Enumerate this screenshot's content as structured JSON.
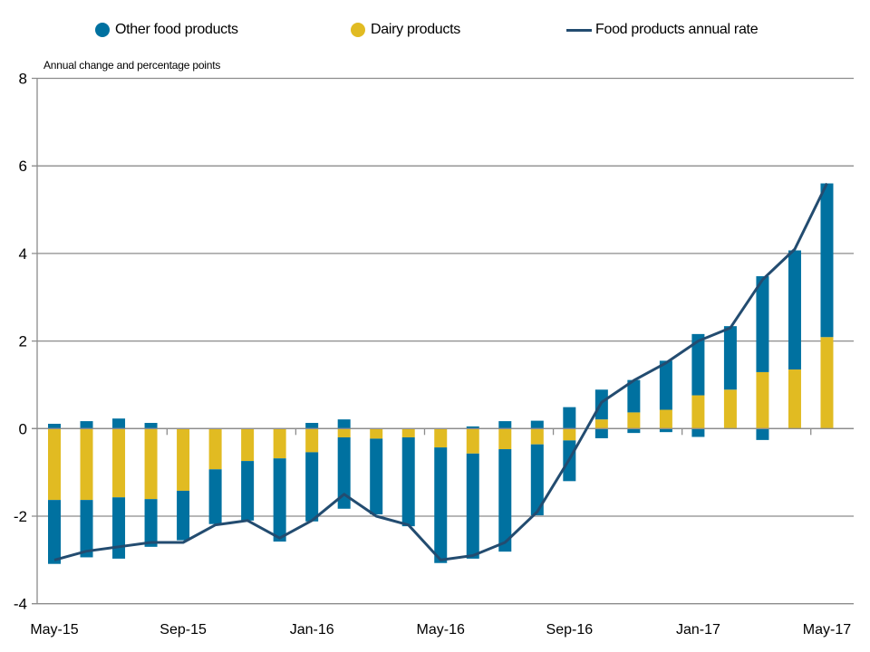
{
  "chart_data": {
    "type": "bar",
    "stacked": true,
    "title": "",
    "ylabel": "Annual change and percentage points",
    "xlabel": "",
    "ylim": [
      -4,
      8
    ],
    "yticks": [
      -4,
      -2,
      0,
      2,
      4,
      6,
      8
    ],
    "grid": true,
    "legend_position": "top",
    "categories": [
      "May-15",
      "Jun-15",
      "Jul-15",
      "Aug-15",
      "Sep-15",
      "Oct-15",
      "Nov-15",
      "Dec-15",
      "Jan-16",
      "Feb-16",
      "Mar-16",
      "Apr-16",
      "May-16",
      "Jun-16",
      "Jul-16",
      "Aug-16",
      "Sep-16",
      "Oct-16",
      "Nov-16",
      "Dec-16",
      "Jan-17",
      "Feb-17",
      "Mar-17",
      "Apr-17",
      "May-17"
    ],
    "xtick_labels": [
      "May-15",
      "Sep-15",
      "Jan-16",
      "May-16",
      "Sep-16",
      "Jan-17",
      "May-17"
    ],
    "series": [
      {
        "name": "Other food products",
        "type": "bar",
        "color": "#0071A0",
        "values_positive": [
          0.11,
          0.17,
          0.23,
          0.13,
          0,
          0,
          0,
          0,
          0.13,
          0.21,
          0,
          0,
          0,
          0.05,
          0.17,
          0.18,
          0.49,
          0.68,
          0.74,
          1.12,
          1.4,
          1.45,
          2.19,
          2.72,
          3.51
        ],
        "values_negative": [
          -1.46,
          -1.31,
          -1.4,
          -1.09,
          -1.13,
          -1.25,
          -1.36,
          -1.9,
          -1.58,
          -1.63,
          -1.73,
          -2.03,
          -2.64,
          -2.4,
          -2.34,
          -1.62,
          -0.93,
          -0.22,
          -0.1,
          -0.08,
          -0.19,
          0,
          -0.26,
          0,
          0
        ]
      },
      {
        "name": "Dairy products",
        "type": "bar",
        "color": "#E1BB22",
        "values": [
          -1.63,
          -1.63,
          -1.57,
          -1.61,
          -1.42,
          -0.93,
          -0.74,
          -0.68,
          -0.54,
          -0.2,
          -0.23,
          -0.2,
          -0.43,
          -0.57,
          -0.47,
          -0.36,
          -0.27,
          0.21,
          0.37,
          0.43,
          0.76,
          0.89,
          1.29,
          1.35,
          2.09
        ]
      },
      {
        "name": "Food products annual rate",
        "type": "line",
        "color": "#234C70",
        "values": [
          -3.0,
          -2.8,
          -2.7,
          -2.6,
          -2.6,
          -2.2,
          -2.1,
          -2.5,
          -2.1,
          -1.5,
          -2.0,
          -2.2,
          -3.0,
          -2.9,
          -2.6,
          -1.9,
          -0.7,
          0.6,
          1.1,
          1.5,
          2.0,
          2.3,
          3.4,
          4.1,
          5.6
        ]
      }
    ]
  },
  "legend": {
    "items": [
      {
        "label": "Other food products",
        "color": "#0071A0"
      },
      {
        "label": "Dairy products",
        "color": "#E1BB22"
      },
      {
        "label": "Food products annual rate",
        "color": "#234C70"
      }
    ]
  }
}
